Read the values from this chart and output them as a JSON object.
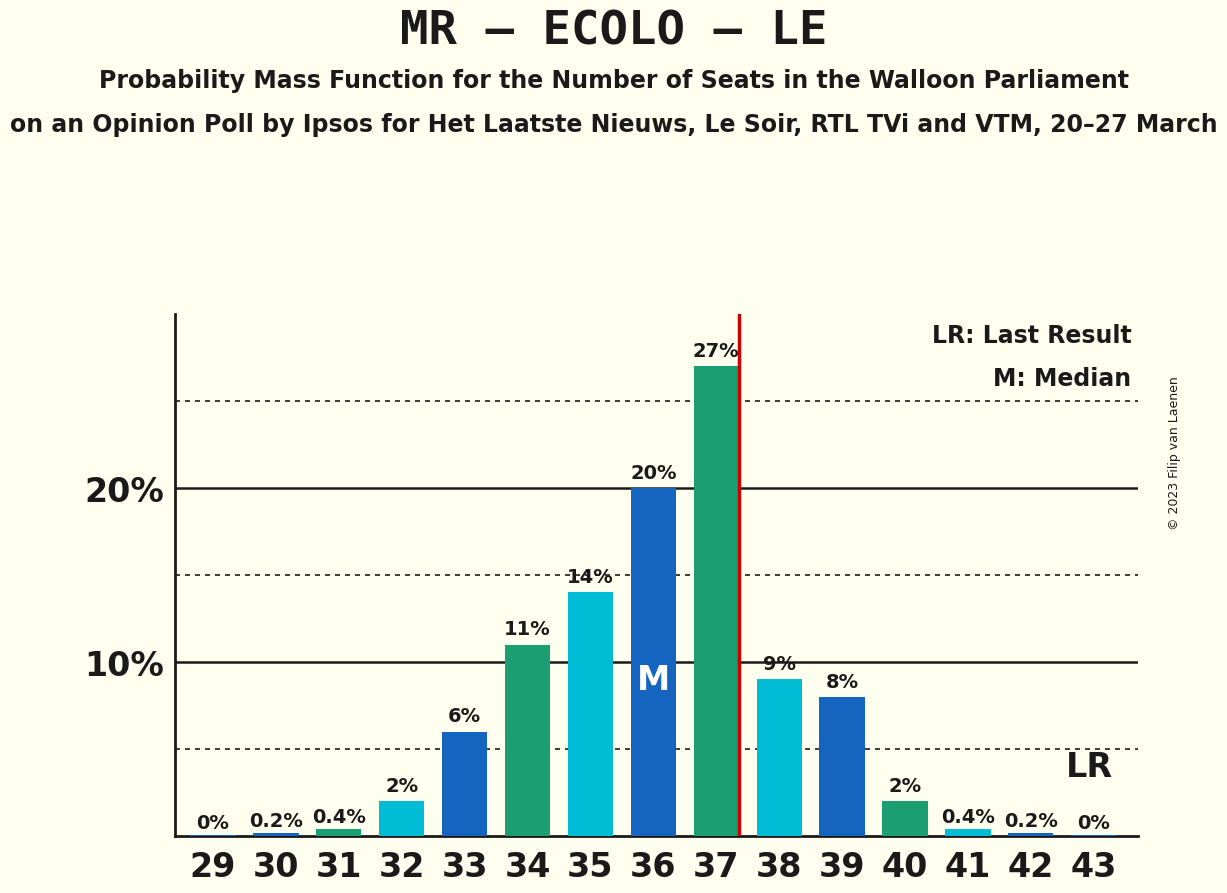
{
  "title": "MR – ECOLO – LE",
  "subtitle1": "Probability Mass Function for the Number of Seats in the Walloon Parliament",
  "subtitle2": "on an Opinion Poll by Ipsos for Het Laatste Nieuws, Le Soir, RTL TVi and VTM, 20–27 March",
  "copyright": "© 2023 Filip van Laenen",
  "seats": [
    29,
    30,
    31,
    32,
    33,
    34,
    35,
    36,
    37,
    38,
    39,
    40,
    41,
    42,
    43
  ],
  "values": [
    0.05,
    0.2,
    0.4,
    2.0,
    6.0,
    11.0,
    14.0,
    20.0,
    27.0,
    9.0,
    8.0,
    2.0,
    0.4,
    0.2,
    0.05
  ],
  "labels": [
    "0%",
    "0.2%",
    "0.4%",
    "2%",
    "6%",
    "11%",
    "14%",
    "20%",
    "27%",
    "9%",
    "8%",
    "2%",
    "0.4%",
    "0.2%",
    "0%"
  ],
  "colors": [
    "#1565C0",
    "#1565C0",
    "#1A9E72",
    "#00BCD4",
    "#1565C0",
    "#1A9E72",
    "#00BCD4",
    "#1565C0",
    "#1A9E72",
    "#00BCD4",
    "#1565C0",
    "#1A9E72",
    "#00BCD4",
    "#1565C0",
    "#1565C0"
  ],
  "lr_seat": 37,
  "median_seat": 36,
  "lr_label": "LR",
  "median_label": "M",
  "legend_lr": "LR: Last Result",
  "legend_m": "M: Median",
  "background_color": "#FFFFF0",
  "ylim_max": 30,
  "bar_width": 0.72,
  "solid_hlines": [
    10,
    20
  ],
  "dotted_hlines": [
    5,
    15,
    25
  ],
  "lr_line_color": "#CC0000",
  "title_fontsize": 34,
  "subtitle_fontsize": 17,
  "tick_fontsize": 24,
  "label_fontsize": 14,
  "legend_fontsize": 17,
  "lr_text_fontsize": 24,
  "median_label_fontsize": 24,
  "ytick_fontsize": 24
}
